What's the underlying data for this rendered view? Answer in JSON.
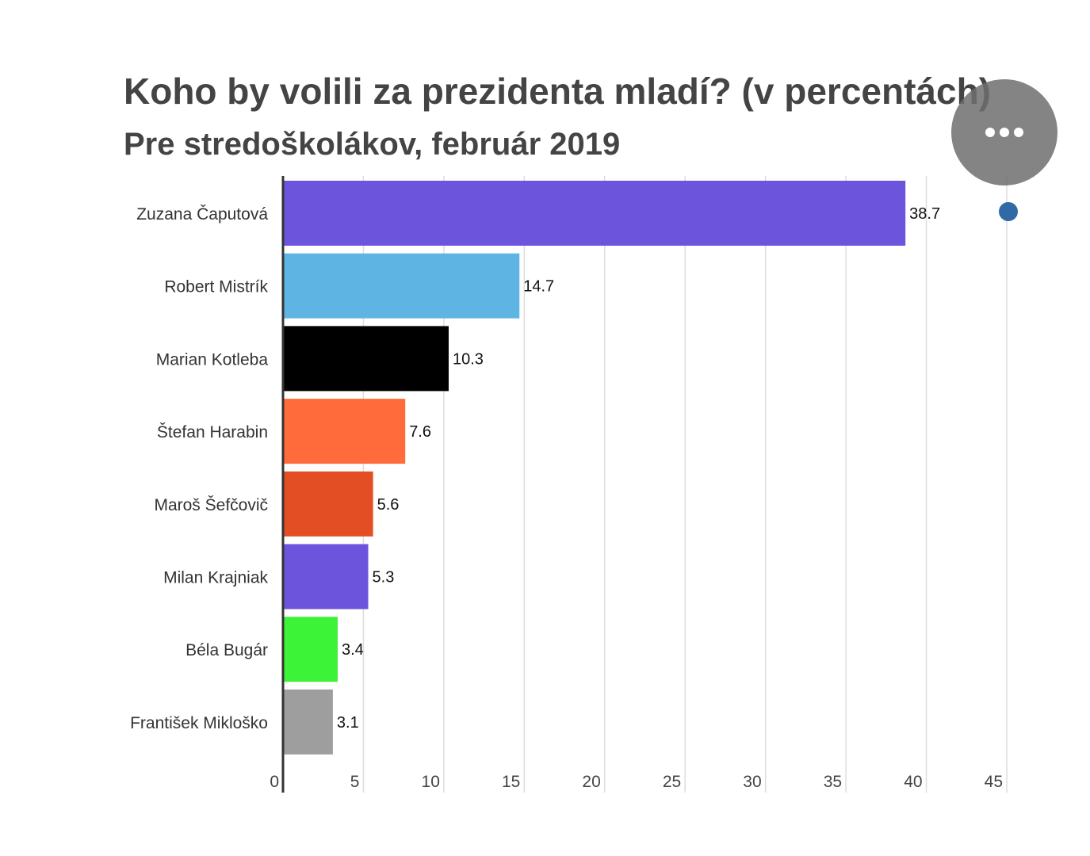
{
  "chart_data": {
    "type": "bar",
    "orientation": "horizontal",
    "title": "Koho by volili za prezidenta mladí? (v percentách)",
    "subtitle": "Pre stredoškolákov, február 2019",
    "categories": [
      "Zuzana Čaputová",
      "Robert Mistrík",
      "Marian Kotleba",
      "Štefan Harabin",
      "Maroš Šefčovič",
      "Milan Krajniak",
      "Béla Bugár",
      "František Mikloško"
    ],
    "values": [
      38.7,
      14.7,
      10.3,
      7.6,
      5.6,
      5.3,
      3.4,
      3.1
    ],
    "value_labels": [
      "38.7",
      "14.7",
      "10.3",
      "7.6",
      "5.6",
      "5.3",
      "3.4",
      "3.1"
    ],
    "colors": [
      "#6c54dc",
      "#5eb5e4",
      "#000000",
      "#ff6b3a",
      "#e34e24",
      "#6c54dc",
      "#3cf337",
      "#9e9e9e"
    ],
    "xlim": [
      0,
      45
    ],
    "xticks": [
      "0",
      "5",
      "10",
      "15",
      "20",
      "25",
      "30",
      "35",
      "40",
      "45"
    ],
    "grid": true,
    "xlabel": "",
    "ylabel": ""
  },
  "overlay": {
    "more_icon": "more-horizontal-icon",
    "indicator_color": "#2f6aa6"
  }
}
